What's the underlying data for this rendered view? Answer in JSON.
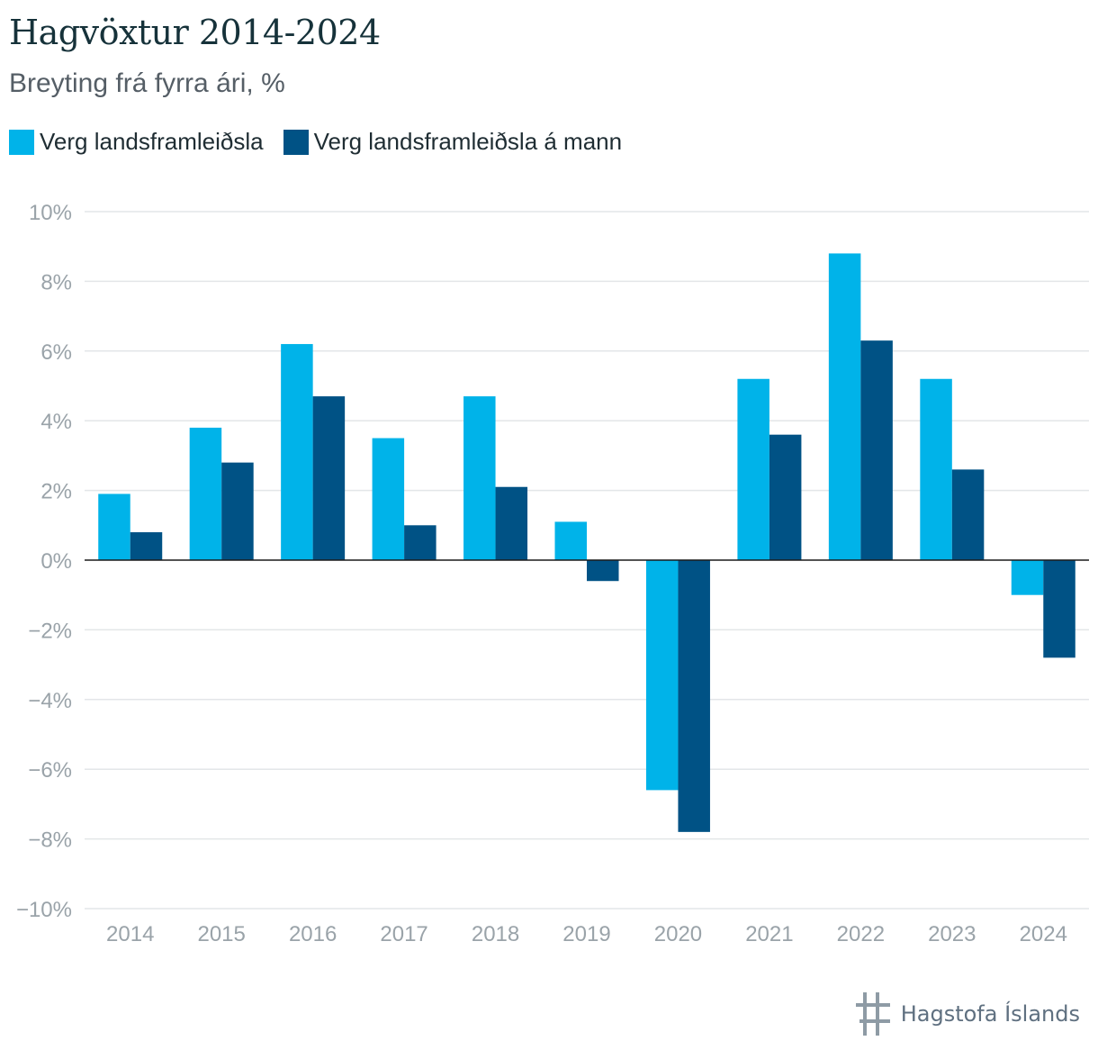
{
  "header": {
    "title": "Hagvöxtur 2014-2024",
    "subtitle": "Breyting frá fyrra ári, %"
  },
  "legend": [
    {
      "label": "Verg landsframleiðsla",
      "color": "#00b3e9"
    },
    {
      "label": "Verg landsframleiðsla á mann",
      "color": "#005285"
    }
  ],
  "logo": {
    "text": "Hagstofa Íslands"
  },
  "chart_data": {
    "type": "bar",
    "categories": [
      "2014",
      "2015",
      "2016",
      "2017",
      "2018",
      "2019",
      "2020",
      "2021",
      "2022",
      "2023",
      "2024"
    ],
    "series": [
      {
        "name": "Verg landsframleiðsla",
        "color": "#00b3e9",
        "values": [
          1.9,
          3.8,
          6.2,
          3.5,
          4.7,
          1.1,
          -6.6,
          5.2,
          8.8,
          5.2,
          -1.0
        ]
      },
      {
        "name": "Verg landsframleiðsla á mann",
        "color": "#005285",
        "values": [
          0.8,
          2.8,
          4.7,
          1.0,
          2.1,
          -0.6,
          -7.8,
          3.6,
          6.3,
          2.6,
          -2.8
        ]
      }
    ],
    "ylim": [
      -10,
      10
    ],
    "yticks": [
      10,
      8,
      6,
      4,
      2,
      0,
      -2,
      -4,
      -6,
      -8,
      -10
    ],
    "ytick_labels": [
      "10%",
      "8%",
      "6%",
      "4%",
      "2%",
      "0%",
      "−2%",
      "−4%",
      "−6%",
      "−8%",
      "−10%"
    ],
    "grid": true,
    "legend_position": "top-left"
  }
}
